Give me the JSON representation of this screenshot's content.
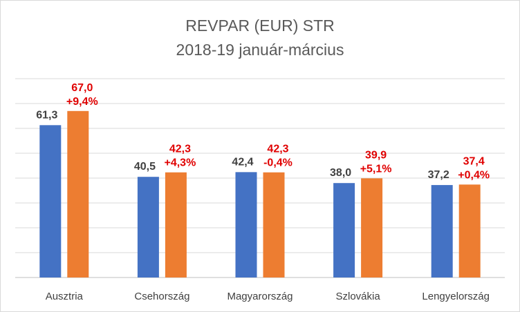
{
  "chart_data": {
    "type": "bar",
    "title": "REVPAR (EUR) STR",
    "subtitle": "2018-19 január-március",
    "categories": [
      "Ausztria",
      "Csehország",
      "Magyarország",
      "Szlovákia",
      "Lengyelország"
    ],
    "series": [
      {
        "values": [
          61.3,
          40.5,
          42.4,
          38.0,
          37.2
        ],
        "color": "#4472c4"
      },
      {
        "values": [
          67.0,
          42.3,
          42.3,
          39.9,
          37.4
        ],
        "color": "#ed7d31"
      }
    ],
    "value_labels_series1": [
      "61,3",
      "40,5",
      "42,4",
      "38,0",
      "37,2"
    ],
    "value_labels_series2": [
      "67,0",
      "42,3",
      "42,3",
      "39,9",
      "37,4"
    ],
    "change_labels": [
      "+9,4%",
      "+4,3%",
      "-0,4%",
      "+5,1%",
      "+0,4%"
    ],
    "ylim": [
      0,
      80
    ],
    "grid": true,
    "legend": "none"
  }
}
